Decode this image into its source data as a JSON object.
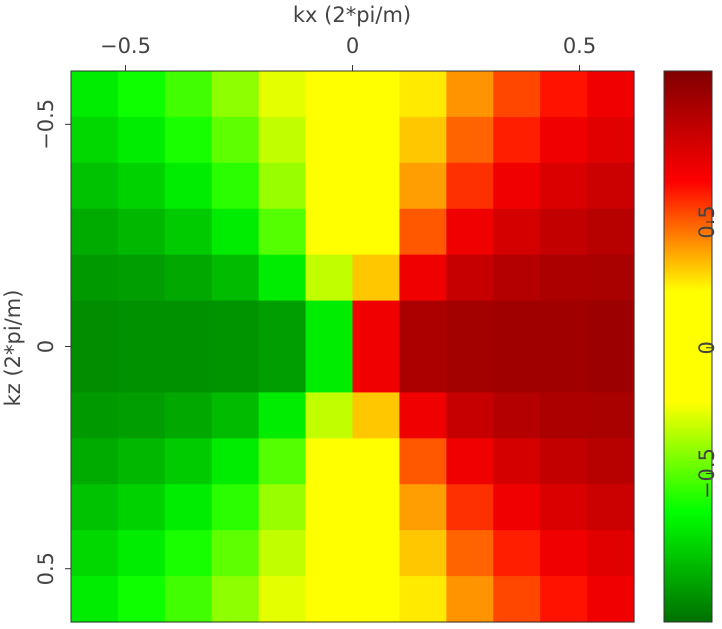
{
  "chart_data": {
    "type": "heatmap",
    "xlabel": "kx (2*pi/m)",
    "ylabel": "kz (2*pi/m)",
    "xlim": [
      -0.62,
      0.62
    ],
    "ylim": [
      -0.62,
      0.62
    ],
    "xticks": [
      {
        "value": -0.5,
        "label": "−0.5"
      },
      0,
      0.5
    ],
    "yticks": [
      {
        "value": -0.5,
        "label": "−0.5"
      },
      0,
      0.5
    ],
    "z": [
      [
        -0.71,
        -0.63,
        -0.54,
        -0.41,
        -0.26,
        -0.09,
        0.09,
        0.26,
        0.41,
        0.54,
        0.63,
        0.71
      ],
      [
        -0.77,
        -0.71,
        -0.61,
        -0.49,
        -0.32,
        -0.11,
        0.11,
        0.32,
        0.49,
        0.61,
        0.71,
        0.77
      ],
      [
        -0.84,
        -0.79,
        -0.71,
        -0.58,
        -0.39,
        -0.14,
        0.14,
        0.39,
        0.58,
        0.71,
        0.79,
        0.84
      ],
      [
        -0.91,
        -0.87,
        -0.81,
        -0.71,
        -0.51,
        -0.2,
        0.2,
        0.51,
        0.71,
        0.81,
        0.87,
        0.91
      ],
      [
        -0.96,
        -0.95,
        -0.92,
        -0.86,
        -0.71,
        -0.32,
        0.32,
        0.71,
        0.86,
        0.92,
        0.95,
        0.96
      ],
      [
        -1,
        -0.99,
        -0.99,
        -0.98,
        -0.95,
        -0.71,
        0.71,
        0.95,
        0.98,
        0.99,
        0.99,
        1
      ],
      [
        -1,
        -0.99,
        -0.99,
        -0.98,
        -0.95,
        -0.71,
        0.71,
        0.95,
        0.98,
        0.99,
        0.99,
        1
      ],
      [
        -0.96,
        -0.95,
        -0.92,
        -0.86,
        -0.71,
        -0.32,
        0.32,
        0.71,
        0.86,
        0.92,
        0.95,
        0.96
      ],
      [
        -0.91,
        -0.87,
        -0.81,
        -0.71,
        -0.51,
        -0.2,
        0.2,
        0.51,
        0.71,
        0.81,
        0.87,
        0.91
      ],
      [
        -0.84,
        -0.79,
        -0.71,
        -0.58,
        -0.39,
        -0.14,
        0.14,
        0.39,
        0.58,
        0.71,
        0.79,
        0.84
      ],
      [
        -0.77,
        -0.71,
        -0.61,
        -0.49,
        -0.32,
        -0.11,
        0.11,
        0.32,
        0.49,
        0.61,
        0.71,
        0.77
      ],
      [
        -0.71,
        -0.63,
        -0.54,
        -0.41,
        -0.26,
        -0.09,
        0.09,
        0.26,
        0.41,
        0.54,
        0.63,
        0.71
      ]
    ],
    "colormap": [
      "#007000",
      "#00ff00",
      "#ffff00",
      "#ffff00",
      "#ff0000",
      "#800000"
    ],
    "clim": [
      -1.09,
      1.1
    ],
    "cticks": [
      {
        "value": -0.5,
        "label": "−0.5"
      },
      0,
      0.5
    ]
  }
}
